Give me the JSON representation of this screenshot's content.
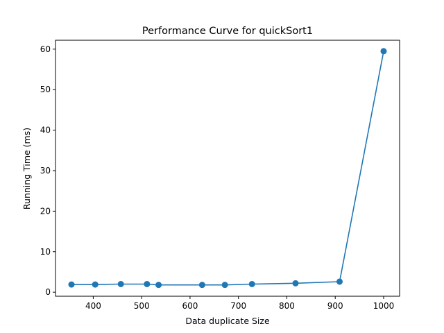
{
  "chart_data": {
    "type": "line",
    "title": "Performance Curve for quickSort1",
    "xlabel": "Data duplicate Size",
    "ylabel": "Running Time (ms)",
    "xlim": [
      322,
      1033
    ],
    "ylim": [
      -1,
      62.2
    ],
    "xticks": [
      400,
      500,
      600,
      700,
      800,
      900,
      1000
    ],
    "yticks": [
      0,
      10,
      20,
      30,
      40,
      50,
      60
    ],
    "grid": false,
    "legend": null,
    "series": [
      {
        "color": "#1f77b4",
        "marker": "circle",
        "x": [
          355,
          404,
          457,
          511,
          535,
          625,
          672,
          728,
          818,
          909,
          1000
        ],
        "y": [
          1.9,
          1.9,
          2.0,
          2.0,
          1.8,
          1.8,
          1.8,
          2.0,
          2.2,
          2.6,
          59.5
        ]
      }
    ]
  }
}
